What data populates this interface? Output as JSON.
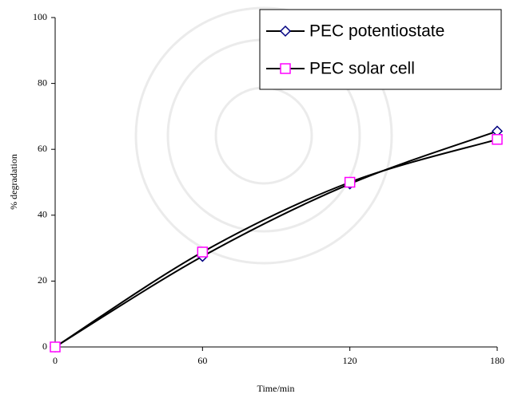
{
  "chart_data": {
    "type": "line",
    "x_label": "Time/min",
    "y_label": "% degradation",
    "x": [
      0,
      60,
      120,
      180
    ],
    "series": [
      {
        "name": "PEC potentiostate",
        "color": "#000080",
        "marker": "diamond",
        "values": [
          0,
          27.5,
          49.5,
          65.5
        ]
      },
      {
        "name": "PEC solar cell",
        "color": "#ff00ff",
        "marker": "square",
        "values": [
          0,
          28.8,
          50,
          63
        ]
      }
    ],
    "line_color": "#000000",
    "smooth": true,
    "xlim": [
      0,
      180
    ],
    "xticks": [
      0,
      60,
      120,
      180
    ],
    "ylim": [
      0,
      100
    ],
    "yticks": [
      0,
      20,
      40,
      60,
      80,
      100
    ],
    "legend": "upper right"
  }
}
